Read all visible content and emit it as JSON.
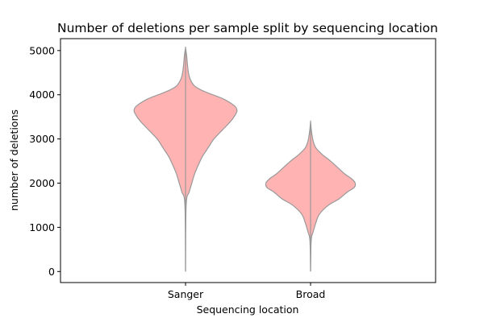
{
  "chart_data": {
    "type": "violin",
    "title": "Number of deletions per sample split by sequencing location",
    "xlabel": "Sequencing location",
    "ylabel": "number of deletions",
    "categories": [
      "Sanger",
      "Broad"
    ],
    "ylim": [
      -250,
      5270
    ],
    "yticks": [
      0,
      1000,
      2000,
      3000,
      4000,
      5000
    ],
    "grid": false,
    "colors": {
      "fill": "#ffb3b3",
      "edge": "#999999",
      "axis": "#000000"
    },
    "violins": [
      {
        "category": "Sanger",
        "min": 0,
        "max": 5060,
        "profile": [
          [
            0,
            0.0
          ],
          [
            1500,
            0.012
          ],
          [
            1800,
            0.07
          ],
          [
            2000,
            0.12
          ],
          [
            2200,
            0.17
          ],
          [
            2400,
            0.24
          ],
          [
            2600,
            0.32
          ],
          [
            2800,
            0.43
          ],
          [
            3000,
            0.54
          ],
          [
            3200,
            0.7
          ],
          [
            3400,
            0.86
          ],
          [
            3550,
            0.95
          ],
          [
            3650,
            0.98
          ],
          [
            3750,
            0.93
          ],
          [
            3900,
            0.73
          ],
          [
            4000,
            0.52
          ],
          [
            4100,
            0.31
          ],
          [
            4200,
            0.17
          ],
          [
            4350,
            0.09
          ],
          [
            4500,
            0.055
          ],
          [
            4700,
            0.035
          ],
          [
            4900,
            0.02
          ],
          [
            5060,
            0.0
          ]
        ]
      },
      {
        "category": "Broad",
        "min": 0,
        "max": 3380,
        "profile": [
          [
            0,
            0.0
          ],
          [
            700,
            0.012
          ],
          [
            900,
            0.05
          ],
          [
            1100,
            0.1
          ],
          [
            1300,
            0.17
          ],
          [
            1500,
            0.34
          ],
          [
            1650,
            0.55
          ],
          [
            1800,
            0.7
          ],
          [
            1900,
            0.83
          ],
          [
            2000,
            0.85
          ],
          [
            2100,
            0.78
          ],
          [
            2200,
            0.66
          ],
          [
            2350,
            0.52
          ],
          [
            2500,
            0.38
          ],
          [
            2650,
            0.22
          ],
          [
            2800,
            0.1
          ],
          [
            2950,
            0.05
          ],
          [
            3150,
            0.02
          ],
          [
            3380,
            0.0
          ]
        ]
      }
    ]
  }
}
